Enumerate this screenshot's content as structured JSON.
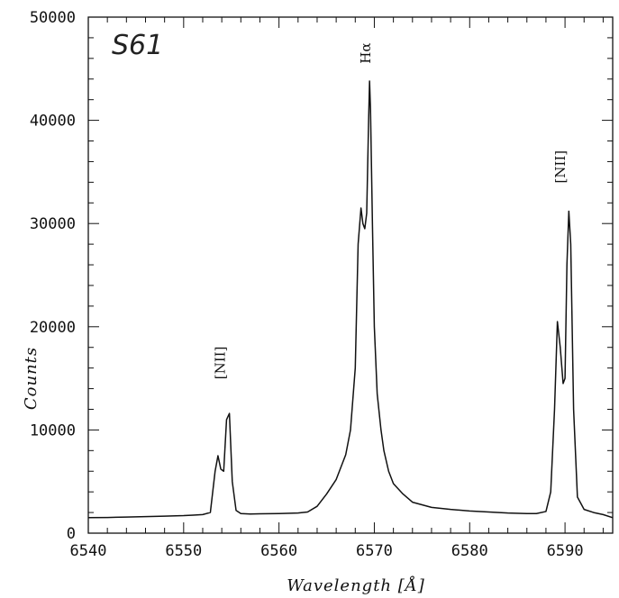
{
  "chart_data": {
    "type": "line",
    "panel_label": "S61",
    "xlabel": "Wavelength [Å]",
    "ylabel": "Counts",
    "xlim": [
      6540,
      6595
    ],
    "ylim": [
      0,
      50000
    ],
    "x_ticks": [
      6540,
      6550,
      6560,
      6570,
      6580,
      6590
    ],
    "y_ticks": [
      0,
      10000,
      20000,
      30000,
      40000,
      50000
    ],
    "grid": false,
    "line_color": "#111111",
    "annotations": [
      {
        "text": "[NII]",
        "x": 6554.3,
        "y": 16500,
        "orientation": "vertical"
      },
      {
        "text": "Hα",
        "x": 6569.6,
        "y": 46500,
        "orientation": "vertical"
      },
      {
        "text": "[NII]",
        "x": 6590.0,
        "y": 35500,
        "orientation": "vertical"
      }
    ],
    "series": [
      {
        "x": [
          6540,
          6542,
          6544,
          6546,
          6548,
          6550,
          6551,
          6552,
          6552.8,
          6553.3,
          6553.6,
          6553.9,
          6554.2,
          6554.5,
          6554.8,
          6555.1,
          6555.5,
          6556,
          6557,
          6558,
          6560,
          6562,
          6563,
          6564,
          6565,
          6566,
          6567,
          6567.5,
          6568,
          6568.3,
          6568.6,
          6568.8,
          6569.0,
          6569.2,
          6569.4,
          6569.5,
          6569.6,
          6569.8,
          6570,
          6570.3,
          6570.7,
          6571,
          6571.5,
          6572,
          6573,
          6574,
          6576,
          6578,
          6580,
          6582,
          6584,
          6586,
          6587,
          6588,
          6588.5,
          6588.9,
          6589.2,
          6589.5,
          6589.8,
          6590.0,
          6590.2,
          6590.4,
          6590.6,
          6590.9,
          6591.3,
          6592,
          6593,
          6594,
          6595
        ],
        "y": [
          1500,
          1520,
          1560,
          1600,
          1650,
          1700,
          1750,
          1800,
          2000,
          6000,
          7500,
          6200,
          6000,
          11000,
          11600,
          5000,
          2200,
          1900,
          1850,
          1880,
          1900,
          1950,
          2050,
          2600,
          3800,
          5200,
          7600,
          10000,
          16000,
          28000,
          31500,
          30000,
          29500,
          31000,
          40000,
          43800,
          41000,
          30000,
          20000,
          13500,
          10000,
          8000,
          6000,
          4800,
          3800,
          3000,
          2500,
          2300,
          2150,
          2050,
          1950,
          1900,
          1900,
          2100,
          4000,
          12000,
          20500,
          18000,
          14500,
          15000,
          26000,
          31200,
          28000,
          12000,
          3500,
          2300,
          2000,
          1800,
          1500
        ]
      }
    ]
  }
}
